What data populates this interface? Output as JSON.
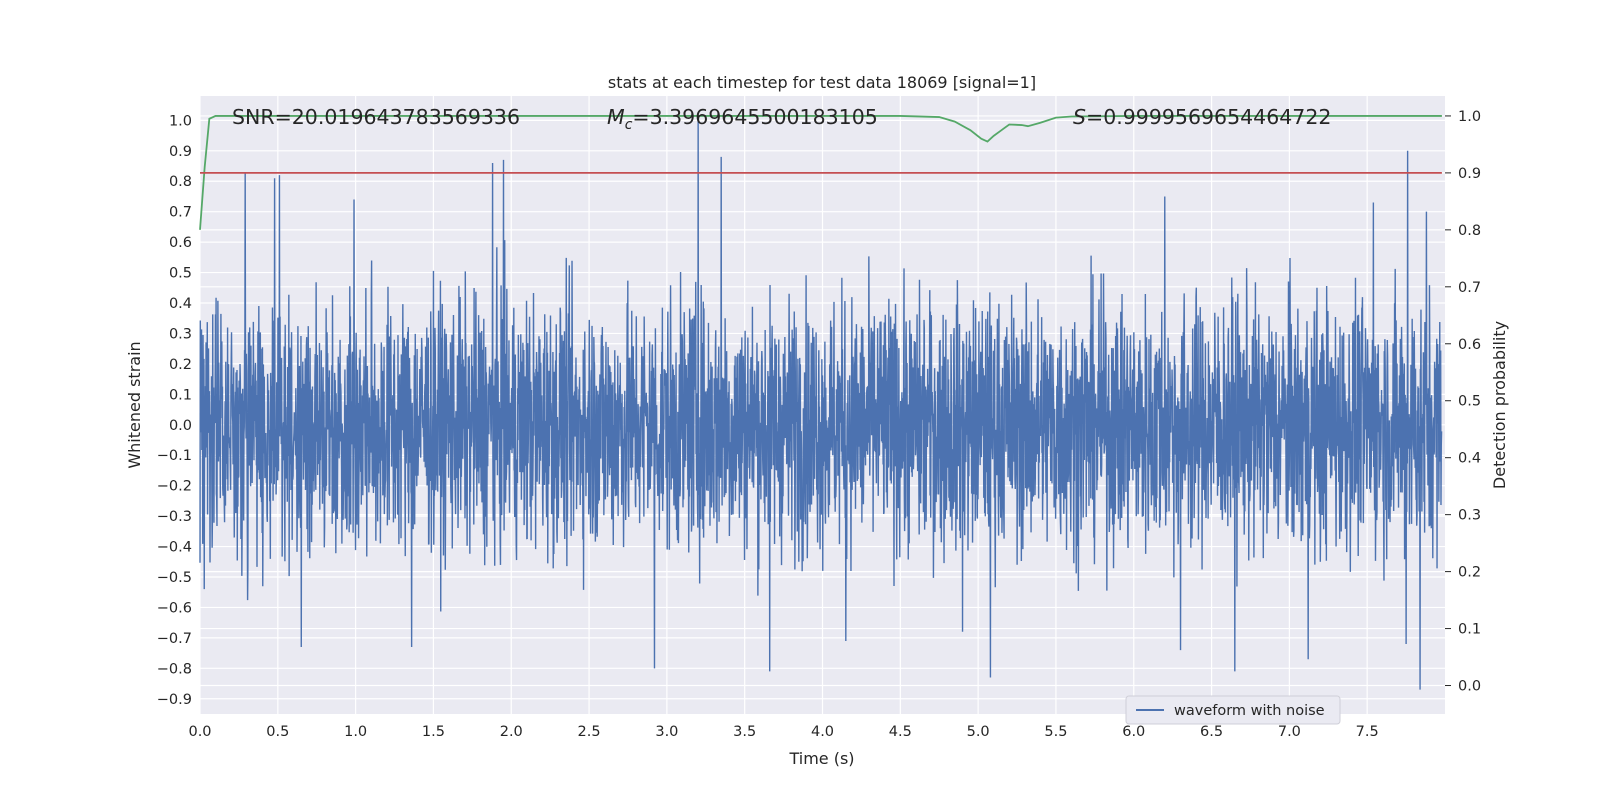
{
  "chart_data": {
    "type": "line",
    "title": "stats at each timestep for test data 18069 [signal=1]",
    "xlabel": "Time (s)",
    "ylabel": "Whitened strain",
    "y2label": "Detection probability",
    "xlim": [
      0.0,
      8.0
    ],
    "ylim": [
      -0.95,
      1.08
    ],
    "y2lim": [
      -0.05,
      1.035
    ],
    "x_ticks": [
      "0.0",
      "0.5",
      "1.0",
      "1.5",
      "2.0",
      "2.5",
      "3.0",
      "3.5",
      "4.0",
      "4.5",
      "5.0",
      "5.5",
      "6.0",
      "6.5",
      "7.0",
      "7.5"
    ],
    "y_ticks": [
      "1.0",
      "0.9",
      "0.8",
      "0.7",
      "0.6",
      "0.5",
      "0.4",
      "0.3",
      "0.2",
      "0.1",
      "0.0",
      "−0.1",
      "−0.2",
      "−0.3",
      "−0.4",
      "−0.5",
      "−0.6",
      "−0.7",
      "−0.8",
      "−0.9"
    ],
    "y2_ticks": [
      "1.0",
      "0.9",
      "0.8",
      "0.7",
      "0.6",
      "0.5",
      "0.4",
      "0.3",
      "0.2",
      "0.1",
      "0.0"
    ],
    "grid": true,
    "legend": {
      "position": "lower-right",
      "entries": [
        "waveform with noise"
      ]
    },
    "annotations": {
      "snr_label": "SNR=20.019643783569336",
      "mc_symbol": "M",
      "mc_subscript": "c",
      "mc_value": "=3.3969645500183105",
      "s_symbol": "S",
      "s_value": "=0.9999569654464722"
    },
    "series": [
      {
        "name": "waveform with noise",
        "axis": "left",
        "style": "dense-noise",
        "color": "#4c72b0",
        "envelope_core": 0.27,
        "spikes": [
          [
            0.29,
            0.83
          ],
          [
            0.48,
            0.81
          ],
          [
            0.51,
            0.82
          ],
          [
            0.99,
            0.74
          ],
          [
            1.88,
            0.86
          ],
          [
            1.95,
            0.87
          ],
          [
            3.2,
            1.0
          ],
          [
            3.35,
            0.88
          ],
          [
            6.2,
            0.75
          ],
          [
            7.54,
            0.73
          ],
          [
            7.76,
            0.9
          ],
          [
            7.88,
            0.7
          ],
          [
            2.92,
            -0.8
          ],
          [
            3.66,
            -0.81
          ],
          [
            5.08,
            -0.83
          ],
          [
            7.84,
            -0.87
          ],
          [
            0.65,
            -0.73
          ],
          [
            1.36,
            -0.73
          ],
          [
            6.65,
            -0.81
          ],
          [
            7.12,
            -0.77
          ],
          [
            4.15,
            -0.71
          ],
          [
            4.9,
            -0.68
          ],
          [
            6.3,
            -0.74
          ],
          [
            7.75,
            -0.72
          ]
        ]
      },
      {
        "name": "",
        "axis": "right",
        "color": "#55a868",
        "x": [
          0.0,
          0.03,
          0.06,
          0.1,
          0.15,
          2.0,
          4.5,
          4.75,
          4.85,
          4.95,
          5.02,
          5.06,
          5.1,
          5.15,
          5.2,
          5.28,
          5.32,
          5.4,
          5.5,
          5.6,
          6.0,
          7.98
        ],
        "y": [
          0.8,
          0.91,
          0.995,
          1.0,
          1.0,
          1.0,
          1.0,
          0.998,
          0.99,
          0.975,
          0.96,
          0.955,
          0.965,
          0.975,
          0.985,
          0.984,
          0.982,
          0.988,
          0.997,
          0.999,
          1.0,
          1.0
        ]
      },
      {
        "name": "",
        "axis": "right",
        "color": "#c44e52",
        "x": [
          0.0,
          7.98
        ],
        "y": [
          0.9,
          0.9
        ]
      }
    ]
  }
}
